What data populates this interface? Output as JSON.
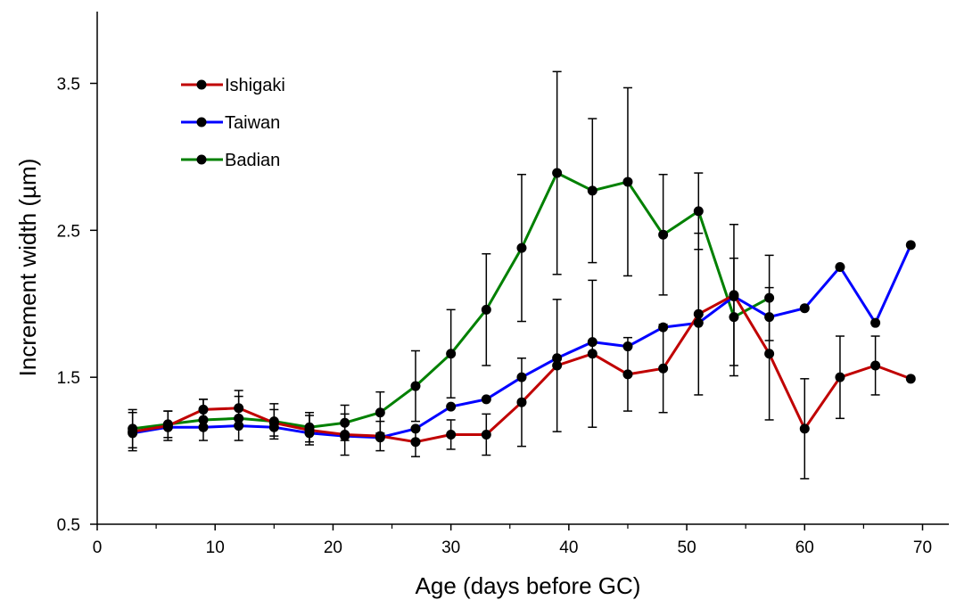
{
  "chart_data": {
    "type": "line",
    "xlabel": "Age (days before GC)",
    "ylabel": "Increment width (µm)",
    "xlim": [
      0,
      72
    ],
    "ylim": [
      0.5,
      4.0
    ],
    "xticks": [
      "0",
      "10",
      "20",
      "30",
      "40",
      "50",
      "60",
      "70"
    ],
    "yticks": [
      "0.5",
      "1.5",
      "2.5",
      "3.5"
    ],
    "grid": false,
    "legend_position": "top-left",
    "series": [
      {
        "name": "Ishigaki",
        "color": "#c00000",
        "x": [
          3,
          6,
          9,
          12,
          15,
          18,
          21,
          24,
          27,
          30,
          33,
          36,
          39,
          42,
          45,
          48,
          51,
          54,
          57,
          60,
          63,
          66,
          69
        ],
        "y": [
          1.13,
          1.17,
          1.28,
          1.29,
          1.19,
          1.14,
          1.11,
          1.1,
          1.06,
          1.11,
          1.11,
          1.33,
          1.58,
          1.66,
          1.52,
          1.56,
          1.93,
          2.06,
          1.66,
          1.15,
          1.5,
          1.58,
          1.49
        ],
        "err": [
          0.13,
          0.1,
          0.07,
          0.12,
          0.09,
          0.1,
          0.14,
          0.1,
          0.1,
          0.1,
          0.14,
          0.3,
          0.45,
          0.5,
          0.25,
          0.3,
          0.55,
          0.48,
          0.45,
          0.34,
          0.28,
          0.2,
          0.0
        ]
      },
      {
        "name": "Taiwan",
        "color": "#0000ff",
        "x": [
          3,
          6,
          9,
          12,
          15,
          18,
          21,
          24,
          27,
          30,
          33,
          36,
          39,
          42,
          45,
          48,
          51,
          54,
          57,
          60,
          63,
          66,
          69
        ],
        "y": [
          1.12,
          1.16,
          1.16,
          1.17,
          1.16,
          1.12,
          1.1,
          1.09,
          1.15,
          1.3,
          1.35,
          1.5,
          1.63,
          1.74,
          1.71,
          1.84,
          1.87,
          2.05,
          1.91,
          1.97,
          2.25,
          1.87,
          2.4
        ]
      },
      {
        "name": "Badian",
        "color": "#008000",
        "x": [
          3,
          6,
          9,
          12,
          15,
          18,
          21,
          24,
          27,
          30,
          33,
          36,
          39,
          42,
          45,
          48,
          51,
          54,
          57
        ],
        "y": [
          1.15,
          1.18,
          1.21,
          1.22,
          1.2,
          1.16,
          1.19,
          1.26,
          1.44,
          1.66,
          1.96,
          2.38,
          2.89,
          2.77,
          2.83,
          2.47,
          2.63,
          1.91,
          2.04
        ],
        "err": [
          0.13,
          0.09,
          0.14,
          0.15,
          0.12,
          0.1,
          0.12,
          0.14,
          0.24,
          0.3,
          0.38,
          0.5,
          0.69,
          0.49,
          0.64,
          0.41,
          0.26,
          0.4,
          0.29
        ]
      }
    ]
  }
}
